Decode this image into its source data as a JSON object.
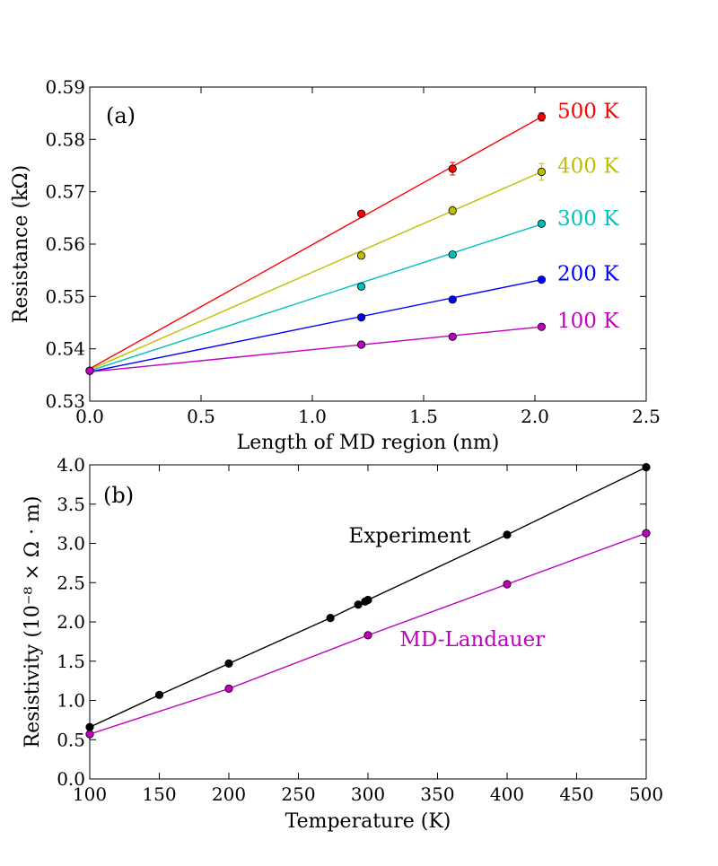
{
  "chart_data": [
    {
      "panel": "a",
      "type": "line",
      "panel_label": "(a)",
      "xlabel": "Length of MD region  (nm)",
      "ylabel": "Resistance  (kΩ)",
      "xlim": [
        0.0,
        2.5
      ],
      "ylim": [
        0.53,
        0.59
      ],
      "xticks": [
        0.0,
        0.5,
        1.0,
        1.5,
        2.0,
        2.5
      ],
      "xtick_labels": [
        "0.0",
        "0.5",
        "1.0",
        "1.5",
        "2.0",
        "2.5"
      ],
      "yticks": [
        0.53,
        0.54,
        0.55,
        0.56,
        0.57,
        0.58,
        0.59
      ],
      "ytick_labels": [
        "0.53",
        "0.54",
        "0.55",
        "0.56",
        "0.57",
        "0.58",
        "0.59"
      ],
      "x": [
        0.0,
        1.22,
        1.63,
        2.03
      ],
      "series": [
        {
          "name": "500 K",
          "color": "#ff0000",
          "values": [
            0.5358,
            0.5658,
            0.5744,
            0.5843
          ],
          "errors": [
            0,
            0.0004,
            0.0012,
            0.0008
          ],
          "fit": [
            0.5362,
            0.5843
          ]
        },
        {
          "name": "400 K",
          "color": "#bfbf00",
          "values": [
            0.5358,
            0.5578,
            0.5664,
            0.5738
          ],
          "errors": [
            0,
            0.0004,
            0.0008,
            0.0016
          ],
          "fit": [
            0.536,
            0.5738
          ]
        },
        {
          "name": "300 K",
          "color": "#00bfbf",
          "values": [
            0.5358,
            0.5519,
            0.558,
            0.5639
          ],
          "errors": [
            0,
            0.0003,
            0.0003,
            0.0003
          ],
          "fit": [
            0.5358,
            0.5638
          ]
        },
        {
          "name": "200 K",
          "color": "#0000ff",
          "values": [
            0.5358,
            0.546,
            0.5494,
            0.5532
          ],
          "errors": [
            0,
            0.0002,
            0.0002,
            0.0002
          ],
          "fit": [
            0.5356,
            0.5532
          ]
        },
        {
          "name": "100 K",
          "color": "#bf00bf",
          "values": [
            0.5358,
            0.5408,
            0.5423,
            0.5442
          ],
          "errors": [
            0,
            0.0002,
            0.0002,
            0.0002
          ],
          "fit": [
            0.5356,
            0.5442
          ]
        }
      ]
    },
    {
      "panel": "b",
      "type": "line",
      "panel_label": "(b)",
      "xlabel": "Temperature  (K)",
      "ylabel": "Resistivity  (10⁻⁸ × Ω · m)",
      "xlim": [
        100,
        500
      ],
      "ylim": [
        0.0,
        4.0
      ],
      "xticks": [
        100,
        150,
        200,
        250,
        300,
        350,
        400,
        450,
        500
      ],
      "xtick_labels": [
        "100",
        "150",
        "200",
        "250",
        "300",
        "350",
        "400",
        "450",
        "500"
      ],
      "yticks": [
        0.0,
        0.5,
        1.0,
        1.5,
        2.0,
        2.5,
        3.0,
        3.5,
        4.0
      ],
      "ytick_labels": [
        "0.0",
        "0.5",
        "1.0",
        "1.5",
        "2.0",
        "2.5",
        "3.0",
        "3.5",
        "4.0"
      ],
      "series": [
        {
          "name": "Experiment",
          "color": "#000000",
          "x": [
            100,
            150,
            200,
            273,
            293,
            298,
            300,
            400,
            500
          ],
          "values": [
            0.66,
            1.07,
            1.47,
            2.05,
            2.22,
            2.26,
            2.28,
            3.11,
            3.97
          ],
          "label_pos": [
            330,
            3.01
          ]
        },
        {
          "name": "MD-Landauer",
          "color": "#bf00bf",
          "x": [
            100,
            200,
            300,
            400,
            500
          ],
          "values": [
            0.57,
            1.15,
            1.83,
            2.48,
            3.13
          ],
          "label_pos": [
            375,
            1.69
          ]
        }
      ]
    }
  ]
}
